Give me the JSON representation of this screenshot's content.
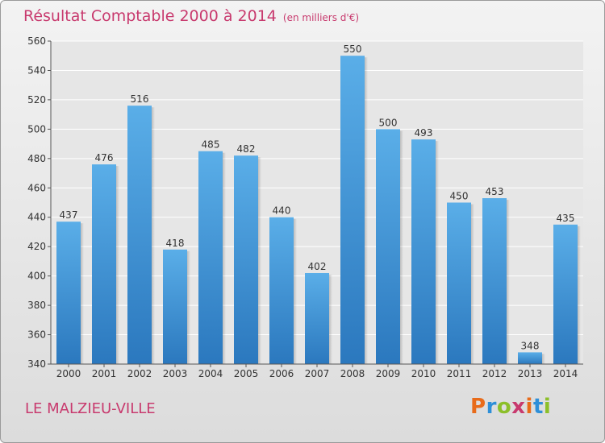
{
  "header": {
    "title": "Résultat Comptable 2000 à 2014",
    "subtitle": "(en milliers d'€)"
  },
  "footer": {
    "place": "LE MALZIEU-VILLE",
    "logo": "Proxiti",
    "logo_colors": [
      "#e86b1a",
      "#2e8fd8",
      "#8cbf2a",
      "#c83a6e"
    ]
  },
  "chart_data": {
    "type": "bar",
    "title": "Résultat Comptable 2000 à 2014",
    "subtitle": "(en milliers d'€)",
    "xlabel": "",
    "ylabel": "",
    "categories": [
      "2000",
      "2001",
      "2002",
      "2003",
      "2004",
      "2005",
      "2006",
      "2007",
      "2008",
      "2009",
      "2010",
      "2011",
      "2012",
      "2013",
      "2014"
    ],
    "values": [
      437,
      476,
      516,
      418,
      485,
      482,
      440,
      402,
      550,
      500,
      493,
      450,
      453,
      348,
      435
    ],
    "ylim": [
      340,
      560
    ],
    "yticks": [
      340,
      360,
      380,
      400,
      420,
      440,
      460,
      480,
      500,
      520,
      540,
      560
    ],
    "grid": true,
    "bar_color_top": "#5aaee8",
    "bar_color_bottom": "#2b78be",
    "plot_background": "#e6e6e6"
  }
}
